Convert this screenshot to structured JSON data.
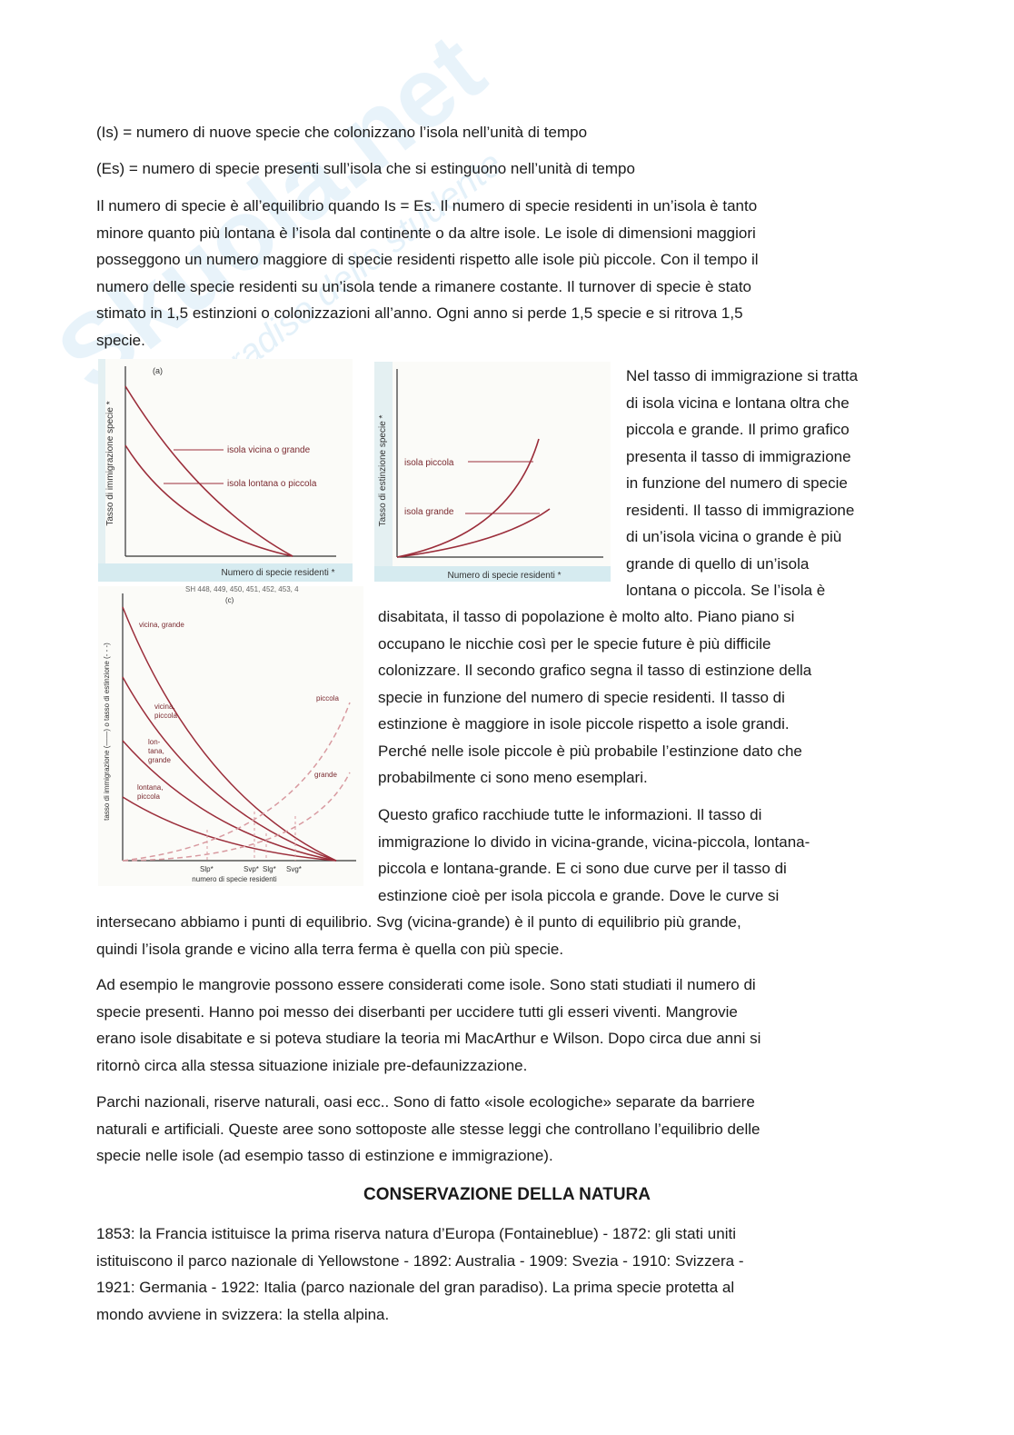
{
  "watermark": {
    "logo": "Skuola.net",
    "subtitle": "Il paradiso dello studente"
  },
  "lines_top": [
    "(Is) = numero di nuove specie che colonizzano l’isola nell’unità di tempo",
    "(Es) = numero di specie presenti sull’isola che si estinguono nell’unità di tempo"
  ],
  "para_equilibrium": [
    "Il numero di specie è all’equilibrio quando Is = Es. Il numero di specie residenti in un’isola è tanto",
    "minore quanto più lontana è l’isola dal continente o da altre isole. Le isole di dimensioni maggiori",
    "posseggono un numero maggiore di specie residenti rispetto alle isole più piccole. Con il tempo il",
    "numero delle specie residenti su un’isola tende a rimanere costante. Il turnover di specie è stato",
    "stimato in 1,5 estinzioni o colonizzazioni all’anno. Ogni anno si perde 1,5 specie e si ritrova 1,5",
    "specie."
  ],
  "para_immigration_right": [
    "Nel tasso di immigrazione si tratta",
    "di isola vicina e lontana oltra che",
    "piccola e grande. Il primo grafico",
    "presenta il tasso di immigrazione",
    "in funzione del numero di specie",
    "residenti. Il tasso di immigrazione",
    "di un’isola vicina o grande è più",
    "grande di quello di un’isola",
    "lontana o piccola. Se l’isola è"
  ],
  "para_immigration_mid": [
    "disabitata, il tasso di popolazione è molto alto. Piano piano si",
    "occupano le nicchie così per le specie future è più difficile",
    "colonizzare. Il secondo grafico segna il tasso di estinzione della",
    "specie in funzione del numero di specie residenti. Il tasso di",
    "estinzione è maggiore in isole piccole rispetto a isole grandi.",
    "Perché nelle isole piccole è più probabile l’estinzione dato che",
    "probabilmente ci sono meno esemplari."
  ],
  "para_graph_mid": [
    "Questo grafico racchiude tutte le informazioni. Il tasso di",
    "immigrazione lo divido in vicina-grande, vicina-piccola, lontana-",
    "piccola e lontana-grande. E ci sono due curve per il tasso di",
    "estinzione cioè per isola piccola e grande. Dove le curve si"
  ],
  "para_graph_full": [
    "intersecano abbiamo i punti di equilibrio. Svg (vicina-grande) è il punto di equilibrio più grande,",
    "quindi l’isola grande e vicino alla terra ferma è quella con più specie."
  ],
  "para_mangrovie": [
    "Ad esempio le mangrovie possono essere considerati come isole. Sono stati studiati il numero di",
    "specie presenti. Hanno poi messo dei diserbanti per uccidere tutti gli esseri viventi. Mangrovie",
    "erano isole disabitate e si poteva studiare la teoria mi MacArthur e Wilson. Dopo circa due anni si",
    "ritornò circa alla stessa situazione iniziale pre-defaunizzazione."
  ],
  "para_parchi": [
    "Parchi nazionali, riserve naturali, oasi ecc.. Sono di fatto «isole ecologiche» separate da barriere",
    "naturali e artificiali. Queste aree sono sottoposte alle stesse leggi che controllano l’equilibrio delle",
    "specie nelle isole (ad esempio tasso di estinzione e immigrazione)."
  ],
  "heading": "CONSERVAZIONE DELLA NATURA",
  "para_conservazione": [
    "1853: la Francia istituisce la prima riserva natura d’Europa (Fontaineblue) - 1872: gli stati uniti",
    "istituiscono il parco nazionale di Yellowstone - 1892: Australia - 1909: Svezia - 1910: Svizzera -",
    "1921: Germania - 1922: Italia (parco nazionale del gran paradiso). La prima specie protetta al",
    "mondo avviene in svizzera: la stella alpina."
  ],
  "fig_a": {
    "panel": "(a)",
    "ylabel": "Tasso di immigrazione specie *",
    "xlabel": "Numero di specie residenti *",
    "curve_upper": "isola vicina o grande",
    "curve_lower": "isola lontana o piccola"
  },
  "fig_b": {
    "ylabel": "Tasso di estinzione specie *",
    "xlabel": "Numero di specie residenti *",
    "curve_upper": "isola piccola",
    "curve_lower": "isola grande"
  },
  "fig_c": {
    "header_fragment": "SH 448, 449, 450, 451, 452, 453, 4",
    "panel": "(c)",
    "ylabel": "tasso di immigrazione (——) o tasso di estinzione (- - -)",
    "xlabel": "numero di specie residenti",
    "imm_labels": {
      "vg": "vicina, grande",
      "vp1": "vicina,",
      "vp2": "piccola",
      "lg1": "lon-",
      "lg2": "tana,",
      "lg3": "grande",
      "lp1": "lontana,",
      "lp2": "piccola"
    },
    "ext_labels": {
      "piccola": "piccola",
      "grande": "grande"
    },
    "eq_labels": {
      "lp": "Slp*",
      "vp": "Svp*",
      "lg": "Slg*",
      "vg": "Svg*"
    }
  },
  "colors": {
    "curve": "#9b2d3a",
    "dashed": "#d89aa0",
    "panel_strip": "#d6ebf0",
    "text": "#1a1a1a"
  }
}
